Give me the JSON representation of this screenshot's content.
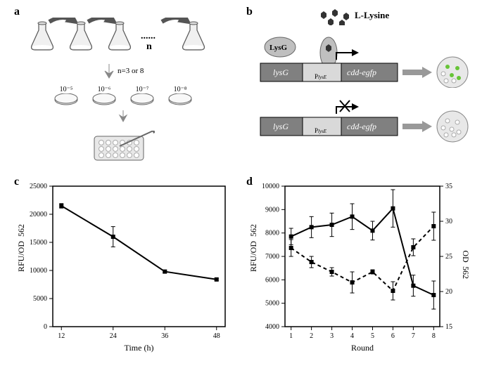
{
  "panels": {
    "a": "a",
    "b": "b",
    "c": "c",
    "d": "d"
  },
  "panel_a": {
    "flask_count": 4,
    "dots": "......",
    "n_label": "n",
    "transfer_label": "n=3 or 8",
    "dilutions": [
      "10⁻⁵",
      "10⁻⁶",
      "10⁻⁷",
      "10⁻⁸"
    ]
  },
  "panel_b": {
    "ligand_label": "L-Lysine",
    "lysG_protein": "LysG",
    "lysG_gene": "lysG",
    "promoter": "PlysE",
    "reporter_gene": "cdd-egfp",
    "colony_active_color": "#67c437",
    "colony_inactive_color": "#ffffff"
  },
  "panel_c": {
    "type": "line",
    "xlabel": "Time (h)",
    "ylabel": "RFU/OD₅₆₂",
    "x_ticks": [
      12,
      24,
      36,
      48
    ],
    "y_ticks": [
      0,
      5000,
      10000,
      15000,
      20000,
      25000
    ],
    "xlim": [
      10,
      50
    ],
    "ylim": [
      0,
      25000
    ],
    "data": [
      {
        "x": 12,
        "y": 21500,
        "err": 400
      },
      {
        "x": 24,
        "y": 16000,
        "err": 1800
      },
      {
        "x": 36,
        "y": 9800,
        "err": 200
      },
      {
        "x": 48,
        "y": 8400,
        "err": 200
      }
    ],
    "line_color": "#000000",
    "background_color": "#ffffff"
  },
  "panel_d": {
    "type": "dual-axis-line",
    "xlabel": "Round",
    "ylabel_left": "RFU/OD₅₆₂",
    "ylabel_right": "OD₅₆₂",
    "x_ticks": [
      1,
      2,
      3,
      4,
      5,
      6,
      7,
      8
    ],
    "y_left_ticks": [
      4000,
      5000,
      6000,
      7000,
      8000,
      9000,
      10000
    ],
    "y_right_ticks": [
      15,
      20,
      25,
      30,
      35
    ],
    "xlim": [
      0.7,
      8.3
    ],
    "ylim_left": [
      4000,
      10000
    ],
    "ylim_right": [
      15,
      35
    ],
    "series_solid": [
      {
        "x": 1,
        "y": 7850,
        "err": 350
      },
      {
        "x": 2,
        "y": 8250,
        "err": 450
      },
      {
        "x": 3,
        "y": 8350,
        "err": 500
      },
      {
        "x": 4,
        "y": 8700,
        "err": 550
      },
      {
        "x": 5,
        "y": 8100,
        "err": 400
      },
      {
        "x": 6,
        "y": 9050,
        "err": 800
      },
      {
        "x": 7,
        "y": 5750,
        "err": 450
      },
      {
        "x": 8,
        "y": 5350,
        "err": 600
      }
    ],
    "series_dashed": [
      {
        "x": 1,
        "y": 26.2,
        "err": 1.2
      },
      {
        "x": 2,
        "y": 24.2,
        "err": 0.8
      },
      {
        "x": 3,
        "y": 22.8,
        "err": 0.6
      },
      {
        "x": 4,
        "y": 21.3,
        "err": 1.5
      },
      {
        "x": 5,
        "y": 22.8,
        "err": 0.3
      },
      {
        "x": 6,
        "y": 20.1,
        "err": 1.3
      },
      {
        "x": 7,
        "y": 26.3,
        "err": 1.2
      },
      {
        "x": 8,
        "y": 29.3,
        "err": 2.0
      }
    ],
    "line_color": "#000000",
    "background_color": "#ffffff"
  }
}
